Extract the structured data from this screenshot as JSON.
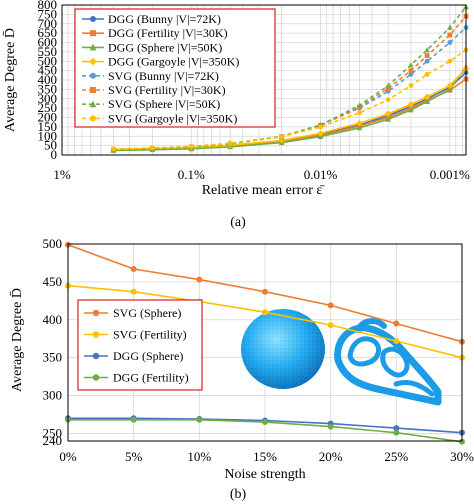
{
  "chart_data": [
    {
      "type": "line",
      "caption": "(a)",
      "xlabel": "Relative mean error ε̄",
      "ylabel": "Average Degree D̄",
      "x_scale": "log",
      "x_reversed": true,
      "x_ticks": [
        1,
        0.1,
        0.01,
        0.001
      ],
      "x_tick_labels": [
        "1%",
        "0.1%",
        "0.01%",
        "0.001%"
      ],
      "xlim": [
        1,
        0.00075
      ],
      "ylim": [
        0,
        800
      ],
      "y_ticks": [
        0,
        50,
        100,
        150,
        200,
        250,
        300,
        350,
        400,
        450,
        500,
        550,
        600,
        650,
        700,
        750,
        800
      ],
      "grid": true,
      "legend_position": "top-left",
      "series": [
        {
          "name": "DGG (Bunny |V|=72K)",
          "color": "#4472c4",
          "dash": false,
          "marker": "circle",
          "x": [
            0.4,
            0.2,
            0.1,
            0.05,
            0.02,
            0.01,
            0.005,
            0.003,
            0.002,
            0.0015,
            0.001,
            0.00075
          ],
          "y": [
            28,
            32,
            38,
            50,
            75,
            110,
            160,
            210,
            260,
            300,
            360,
            440
          ]
        },
        {
          "name": "DGG (Fertility |V|=30K)",
          "color": "#ed7d31",
          "dash": false,
          "marker": "square",
          "x": [
            0.4,
            0.2,
            0.1,
            0.05,
            0.02,
            0.01,
            0.005,
            0.003,
            0.002,
            0.0015,
            0.001,
            0.00075
          ],
          "y": [
            26,
            30,
            36,
            48,
            72,
            105,
            155,
            200,
            250,
            290,
            345,
            405
          ]
        },
        {
          "name": "DGG (Sphere |V|=50K)",
          "color": "#70ad47",
          "dash": false,
          "marker": "triangle",
          "x": [
            0.4,
            0.2,
            0.1,
            0.05,
            0.02,
            0.01,
            0.005,
            0.003,
            0.002,
            0.0015,
            0.001,
            0.00075
          ],
          "y": [
            24,
            28,
            33,
            44,
            66,
            98,
            145,
            190,
            240,
            285,
            350,
            470
          ]
        },
        {
          "name": "DGG (Gargoyle |V|=350K)",
          "color": "#ffc000",
          "dash": false,
          "marker": "diamond",
          "x": [
            0.4,
            0.2,
            0.1,
            0.05,
            0.02,
            0.01,
            0.005,
            0.003,
            0.002,
            0.0015,
            0.001,
            0.00075
          ],
          "y": [
            30,
            34,
            40,
            52,
            78,
            115,
            170,
            220,
            270,
            310,
            370,
            460
          ]
        },
        {
          "name": "SVG (Bunny |V|=72K)",
          "color": "#5b9bd5",
          "dash": true,
          "marker": "circle",
          "x": [
            0.4,
            0.2,
            0.1,
            0.05,
            0.02,
            0.01,
            0.005,
            0.003,
            0.002,
            0.0015,
            0.001,
            0.00075
          ],
          "y": [
            30,
            36,
            45,
            62,
            100,
            160,
            250,
            340,
            430,
            500,
            600,
            680
          ]
        },
        {
          "name": "SVG (Fertility |V|=30K)",
          "color": "#ed7d31",
          "dash": true,
          "marker": "square",
          "x": [
            0.4,
            0.2,
            0.1,
            0.05,
            0.02,
            0.01,
            0.005,
            0.003,
            0.002,
            0.0015,
            0.001,
            0.00075
          ],
          "y": [
            28,
            34,
            43,
            60,
            98,
            158,
            255,
            355,
            450,
            530,
            640,
            740
          ]
        },
        {
          "name": "SVG (Sphere |V|=50K)",
          "color": "#70ad47",
          "dash": true,
          "marker": "triangle",
          "x": [
            0.4,
            0.2,
            0.1,
            0.05,
            0.02,
            0.01,
            0.005,
            0.003,
            0.002,
            0.0015,
            0.001,
            0.00075
          ],
          "y": [
            27,
            33,
            42,
            59,
            97,
            160,
            265,
            370,
            480,
            560,
            680,
            790
          ]
        },
        {
          "name": "SVG (Gargoyle |V|=350K)",
          "color": "#ffc000",
          "dash": true,
          "marker": "circle",
          "x": [
            0.4,
            0.2,
            0.1,
            0.05,
            0.02,
            0.01,
            0.005,
            0.003,
            0.002,
            0.0015,
            0.001,
            0.00075
          ],
          "y": [
            32,
            38,
            46,
            62,
            98,
            150,
            225,
            295,
            370,
            430,
            500,
            560
          ]
        }
      ]
    },
    {
      "type": "line",
      "caption": "(b)",
      "xlabel": "Noise strength",
      "ylabel": "Average Degree D̄",
      "categories": [
        "0%",
        "5%",
        "10%",
        "15%",
        "20%",
        "25%",
        "30%"
      ],
      "ylim": [
        240,
        500
      ],
      "y_ticks": [
        250,
        300,
        350,
        400,
        450,
        500
      ],
      "y_tick_labels": [
        "250",
        "300",
        "350",
        "400",
        "450",
        "500"
      ],
      "y_min_label": "240",
      "grid": true,
      "legend_position": "middle-left",
      "series": [
        {
          "name": "SVG (Sphere)",
          "color": "#ed7d31",
          "marker": "circle",
          "values": [
            499,
            467,
            453,
            437,
            419,
            395,
            371
          ]
        },
        {
          "name": "SVG (Fertility)",
          "color": "#ffc000",
          "marker": "circle",
          "values": [
            445,
            437,
            424,
            410,
            393,
            372,
            350
          ]
        },
        {
          "name": "DGG (Sphere)",
          "color": "#4472c4",
          "marker": "circle",
          "values": [
            270,
            270,
            269,
            267,
            263,
            257,
            251
          ]
        },
        {
          "name": "DGG (Fertility)",
          "color": "#70ad47",
          "marker": "circle",
          "values": [
            268,
            268,
            268,
            265,
            259,
            251,
            239
          ]
        }
      ],
      "inset_images": [
        "sphere-render",
        "fertility-render"
      ]
    }
  ]
}
